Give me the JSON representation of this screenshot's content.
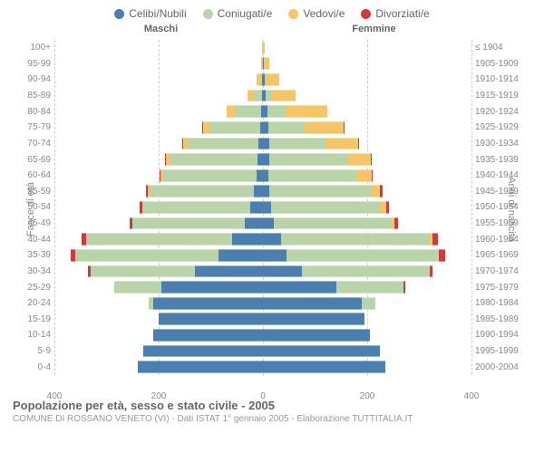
{
  "legend": [
    {
      "label": "Celibi/Nubili",
      "color": "#4a7fb0"
    },
    {
      "label": "Coniugati/e",
      "color": "#b9d4a8"
    },
    {
      "label": "Vedovi/e",
      "color": "#f5c567"
    },
    {
      "label": "Divorziati/e",
      "color": "#d13a3a"
    }
  ],
  "col_headers": {
    "male": "Maschi",
    "female": "Femmine"
  },
  "axis_left": "Fasce di età",
  "axis_right": "Anni di nascita",
  "x_max": 400,
  "x_ticks": [
    400,
    200,
    0,
    200,
    400
  ],
  "caption": {
    "title": "Popolazione per età, sesso e stato civile - 2005",
    "subtitle": "COMUNE DI ROSSANO VENETO (VI) - Dati ISTAT 1° gennaio 2005 - Elaborazione TUTTITALIA.IT"
  },
  "rows": [
    {
      "age": "0-4",
      "birth": "2000-2004",
      "m": {
        "c": 240,
        "k": 0,
        "v": 0,
        "d": 0
      },
      "f": {
        "c": 235,
        "k": 0,
        "v": 0,
        "d": 0
      }
    },
    {
      "age": "5-9",
      "birth": "1995-1999",
      "m": {
        "c": 230,
        "k": 0,
        "v": 0,
        "d": 0
      },
      "f": {
        "c": 225,
        "k": 0,
        "v": 0,
        "d": 0
      }
    },
    {
      "age": "10-14",
      "birth": "1990-1994",
      "m": {
        "c": 210,
        "k": 0,
        "v": 0,
        "d": 0
      },
      "f": {
        "c": 205,
        "k": 0,
        "v": 0,
        "d": 0
      }
    },
    {
      "age": "15-19",
      "birth": "1985-1989",
      "m": {
        "c": 200,
        "k": 0,
        "v": 0,
        "d": 0
      },
      "f": {
        "c": 195,
        "k": 0,
        "v": 0,
        "d": 0
      }
    },
    {
      "age": "20-24",
      "birth": "1980-1984",
      "m": {
        "c": 210,
        "k": 10,
        "v": 0,
        "d": 0
      },
      "f": {
        "c": 190,
        "k": 25,
        "v": 0,
        "d": 0
      }
    },
    {
      "age": "25-29",
      "birth": "1975-1979",
      "m": {
        "c": 195,
        "k": 90,
        "v": 0,
        "d": 0
      },
      "f": {
        "c": 140,
        "k": 130,
        "v": 0,
        "d": 3
      }
    },
    {
      "age": "30-34",
      "birth": "1970-1974",
      "m": {
        "c": 130,
        "k": 200,
        "v": 0,
        "d": 5
      },
      "f": {
        "c": 75,
        "k": 245,
        "v": 0,
        "d": 6
      }
    },
    {
      "age": "35-39",
      "birth": "1965-1969",
      "m": {
        "c": 85,
        "k": 275,
        "v": 0,
        "d": 8
      },
      "f": {
        "c": 45,
        "k": 290,
        "v": 3,
        "d": 12
      }
    },
    {
      "age": "40-44",
      "birth": "1960-1964",
      "m": {
        "c": 60,
        "k": 280,
        "v": 0,
        "d": 8
      },
      "f": {
        "c": 35,
        "k": 285,
        "v": 5,
        "d": 10
      }
    },
    {
      "age": "45-49",
      "birth": "1955-1959",
      "m": {
        "c": 35,
        "k": 215,
        "v": 0,
        "d": 6
      },
      "f": {
        "c": 20,
        "k": 225,
        "v": 8,
        "d": 7
      }
    },
    {
      "age": "50-54",
      "birth": "1950-1954",
      "m": {
        "c": 25,
        "k": 205,
        "v": 2,
        "d": 5
      },
      "f": {
        "c": 15,
        "k": 210,
        "v": 12,
        "d": 5
      }
    },
    {
      "age": "55-59",
      "birth": "1945-1949",
      "m": {
        "c": 18,
        "k": 200,
        "v": 3,
        "d": 4
      },
      "f": {
        "c": 12,
        "k": 195,
        "v": 18,
        "d": 4
      }
    },
    {
      "age": "60-64",
      "birth": "1940-1944",
      "m": {
        "c": 12,
        "k": 180,
        "v": 4,
        "d": 3
      },
      "f": {
        "c": 10,
        "k": 170,
        "v": 28,
        "d": 3
      }
    },
    {
      "age": "65-69",
      "birth": "1935-1939",
      "m": {
        "c": 10,
        "k": 170,
        "v": 6,
        "d": 2
      },
      "f": {
        "c": 12,
        "k": 150,
        "v": 45,
        "d": 2
      }
    },
    {
      "age": "70-74",
      "birth": "1930-1934",
      "m": {
        "c": 8,
        "k": 135,
        "v": 10,
        "d": 2
      },
      "f": {
        "c": 12,
        "k": 110,
        "v": 60,
        "d": 1
      }
    },
    {
      "age": "75-79",
      "birth": "1925-1929",
      "m": {
        "c": 6,
        "k": 95,
        "v": 14,
        "d": 1
      },
      "f": {
        "c": 10,
        "k": 70,
        "v": 75,
        "d": 1
      }
    },
    {
      "age": "80-84",
      "birth": "1920-1924",
      "m": {
        "c": 4,
        "k": 50,
        "v": 16,
        "d": 0
      },
      "f": {
        "c": 8,
        "k": 35,
        "v": 80,
        "d": 0
      }
    },
    {
      "age": "85-89",
      "birth": "1915-1919",
      "m": {
        "c": 2,
        "k": 18,
        "v": 10,
        "d": 0
      },
      "f": {
        "c": 5,
        "k": 12,
        "v": 45,
        "d": 0
      }
    },
    {
      "age": "90-94",
      "birth": "1910-1914",
      "m": {
        "c": 1,
        "k": 5,
        "v": 6,
        "d": 0
      },
      "f": {
        "c": 3,
        "k": 4,
        "v": 25,
        "d": 0
      }
    },
    {
      "age": "95-99",
      "birth": "1905-1909",
      "m": {
        "c": 0,
        "k": 1,
        "v": 2,
        "d": 0
      },
      "f": {
        "c": 1,
        "k": 1,
        "v": 10,
        "d": 0
      }
    },
    {
      "age": "100+",
      "birth": "≤ 1904",
      "m": {
        "c": 0,
        "k": 0,
        "v": 1,
        "d": 0
      },
      "f": {
        "c": 0,
        "k": 0,
        "v": 3,
        "d": 0
      }
    }
  ]
}
